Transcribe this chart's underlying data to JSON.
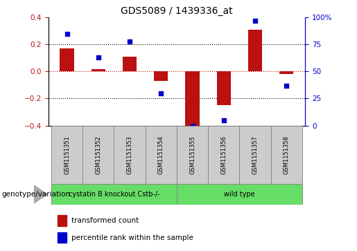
{
  "title": "GDS5089 / 1439336_at",
  "samples": [
    "GSM1151351",
    "GSM1151352",
    "GSM1151353",
    "GSM1151354",
    "GSM1151355",
    "GSM1151356",
    "GSM1151357",
    "GSM1151358"
  ],
  "transformed_count": [
    0.17,
    0.02,
    0.11,
    -0.07,
    -0.41,
    -0.25,
    0.31,
    -0.02
  ],
  "percentile_rank": [
    85,
    63,
    78,
    30,
    0,
    5,
    97,
    37
  ],
  "bar_color": "#bb1111",
  "dot_color": "#0000cc",
  "ylim_left": [
    -0.4,
    0.4
  ],
  "ylim_right": [
    0,
    100
  ],
  "yticks_left": [
    -0.4,
    -0.2,
    0.0,
    0.2,
    0.4
  ],
  "yticks_right": [
    0,
    25,
    50,
    75,
    100
  ],
  "ytick_labels_right": [
    "0",
    "25",
    "50",
    "75",
    "100%"
  ],
  "group1_label": "cystatin B knockout Cstb-/-",
  "group2_label": "wild type",
  "group1_color": "#66dd66",
  "group2_color": "#66dd66",
  "group1_indices": [
    0,
    1,
    2,
    3
  ],
  "group2_indices": [
    4,
    5,
    6,
    7
  ],
  "genotype_label": "genotype/variation",
  "legend_red_label": "transformed count",
  "legend_blue_label": "percentile rank within the sample",
  "bar_width": 0.45,
  "hline_red_color": "#cc0000",
  "hline_black_color": "#000000",
  "sample_box_color": "#cccccc",
  "sample_box_edge": "#888888"
}
